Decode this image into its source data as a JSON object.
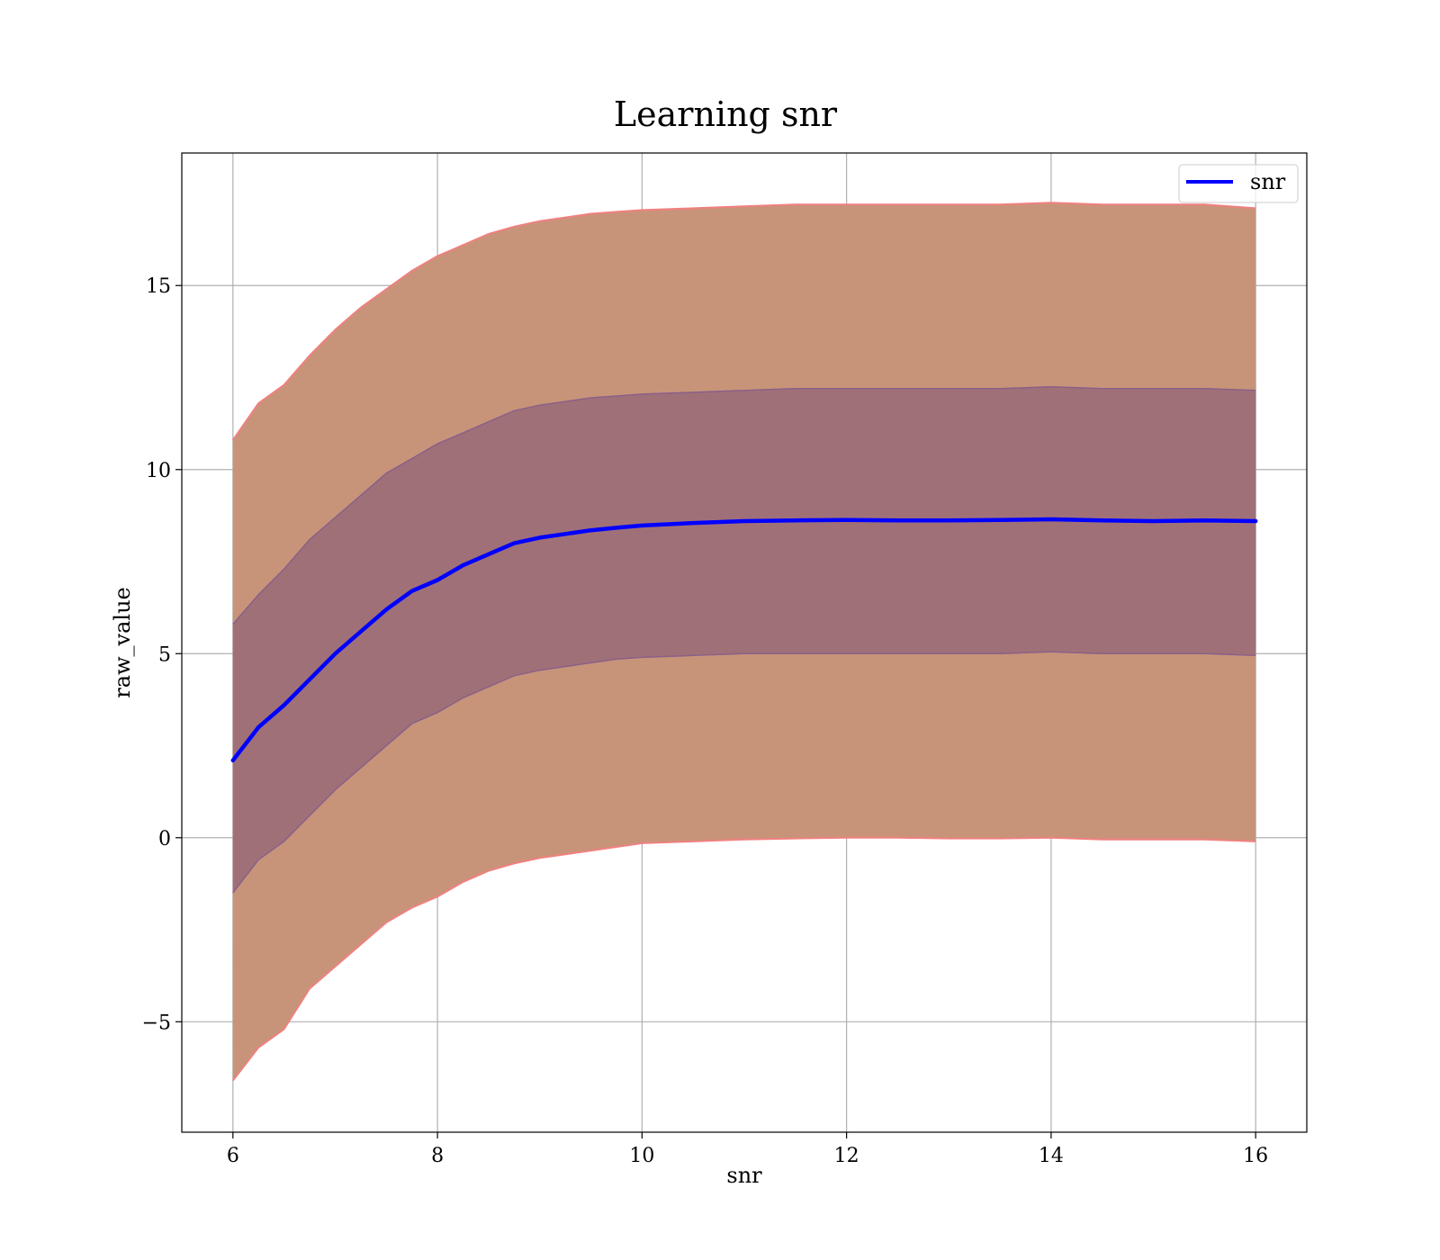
{
  "chart_data": {
    "type": "area",
    "title": "Learning snr",
    "xlabel": "snr",
    "ylabel": "raw_value",
    "xlim": [
      5.5,
      16.5
    ],
    "ylim": [
      -8,
      18.6
    ],
    "xticks": [
      6,
      8,
      10,
      12,
      14,
      16
    ],
    "xtick_labels": [
      "6",
      "8",
      "10",
      "12",
      "14",
      "16"
    ],
    "yticks": [
      -5,
      0,
      5,
      10,
      15
    ],
    "ytick_labels": [
      "−5",
      "0",
      "5",
      "10",
      "15"
    ],
    "grid": true,
    "legend": {
      "position": "top-right",
      "entries": [
        "snr"
      ]
    },
    "colors": {
      "mean_line": "#0000ff",
      "outer_band": "#c89479",
      "outer_band_edge": "#f08080",
      "inner_band": "#a07078",
      "inner_band_edge": "#8a6088",
      "grid": "#b0b0b0"
    },
    "x": [
      6.0,
      6.25,
      6.5,
      6.75,
      7.0,
      7.25,
      7.5,
      7.75,
      8.0,
      8.25,
      8.5,
      8.75,
      9.0,
      9.25,
      9.5,
      9.75,
      10.0,
      10.5,
      11.0,
      11.5,
      12.0,
      12.5,
      13.0,
      13.5,
      14.0,
      14.5,
      15.0,
      15.5,
      16.0
    ],
    "series": [
      {
        "name": "snr",
        "role": "mean",
        "values": [
          2.1,
          3.0,
          3.6,
          4.3,
          5.0,
          5.6,
          6.2,
          6.7,
          7.0,
          7.4,
          7.7,
          8.0,
          8.15,
          8.25,
          8.35,
          8.42,
          8.48,
          8.55,
          8.6,
          8.62,
          8.63,
          8.62,
          8.62,
          8.63,
          8.65,
          8.62,
          8.6,
          8.62,
          8.6
        ]
      },
      {
        "role": "inner_band_upper",
        "values": [
          5.8,
          6.6,
          7.3,
          8.1,
          8.7,
          9.3,
          9.9,
          10.3,
          10.7,
          11.0,
          11.3,
          11.6,
          11.75,
          11.85,
          11.95,
          12.0,
          12.05,
          12.1,
          12.15,
          12.2,
          12.2,
          12.2,
          12.2,
          12.2,
          12.25,
          12.2,
          12.2,
          12.2,
          12.15
        ]
      },
      {
        "role": "inner_band_lower",
        "values": [
          -1.5,
          -0.6,
          -0.1,
          0.6,
          1.3,
          1.9,
          2.5,
          3.1,
          3.4,
          3.8,
          4.1,
          4.4,
          4.55,
          4.65,
          4.75,
          4.85,
          4.9,
          4.95,
          5.0,
          5.0,
          5.0,
          5.0,
          5.0,
          5.0,
          5.05,
          5.0,
          5.0,
          5.0,
          4.95
        ]
      },
      {
        "role": "outer_band_upper",
        "values": [
          10.8,
          11.8,
          12.3,
          13.1,
          13.8,
          14.4,
          14.9,
          15.4,
          15.8,
          16.1,
          16.4,
          16.6,
          16.75,
          16.85,
          16.95,
          17.0,
          17.05,
          17.1,
          17.15,
          17.2,
          17.2,
          17.2,
          17.2,
          17.2,
          17.25,
          17.2,
          17.2,
          17.2,
          17.1
        ]
      },
      {
        "role": "outer_band_lower",
        "values": [
          -6.6,
          -5.7,
          -5.2,
          -4.1,
          -3.5,
          -2.9,
          -2.3,
          -1.9,
          -1.6,
          -1.2,
          -0.9,
          -0.7,
          -0.55,
          -0.45,
          -0.35,
          -0.25,
          -0.15,
          -0.1,
          -0.05,
          -0.02,
          0.0,
          0.0,
          -0.02,
          -0.02,
          0.0,
          -0.05,
          -0.05,
          -0.05,
          -0.1
        ]
      }
    ]
  }
}
